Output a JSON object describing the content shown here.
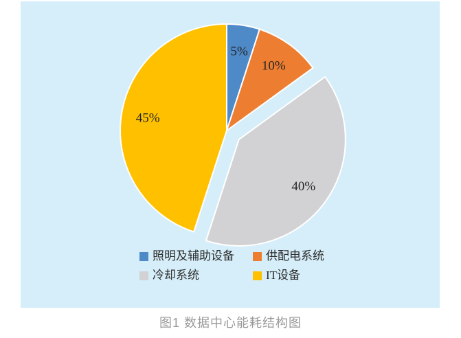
{
  "page": {
    "background": "#ffffff",
    "panel_background": "#D6EEF9"
  },
  "chart_data": {
    "type": "pie",
    "title": "",
    "categories": [
      "照明及辅助设备",
      "供配电系统",
      "冷却系统",
      "IT设备"
    ],
    "values": [
      5,
      10,
      40,
      45
    ],
    "labels": [
      "5%",
      "10%",
      "40%",
      "45%"
    ],
    "colors": [
      "#4E89C8",
      "#ED7D31",
      "#D2D2D4",
      "#FFC000"
    ],
    "explode": [
      0,
      0,
      22,
      0
    ],
    "start_angle_deg": 0,
    "direction": "clockwise",
    "slice_border_color": "#ffffff",
    "label_color": "#262626",
    "legend_position": "bottom"
  },
  "caption": "图1 数据中心能耗结构图"
}
